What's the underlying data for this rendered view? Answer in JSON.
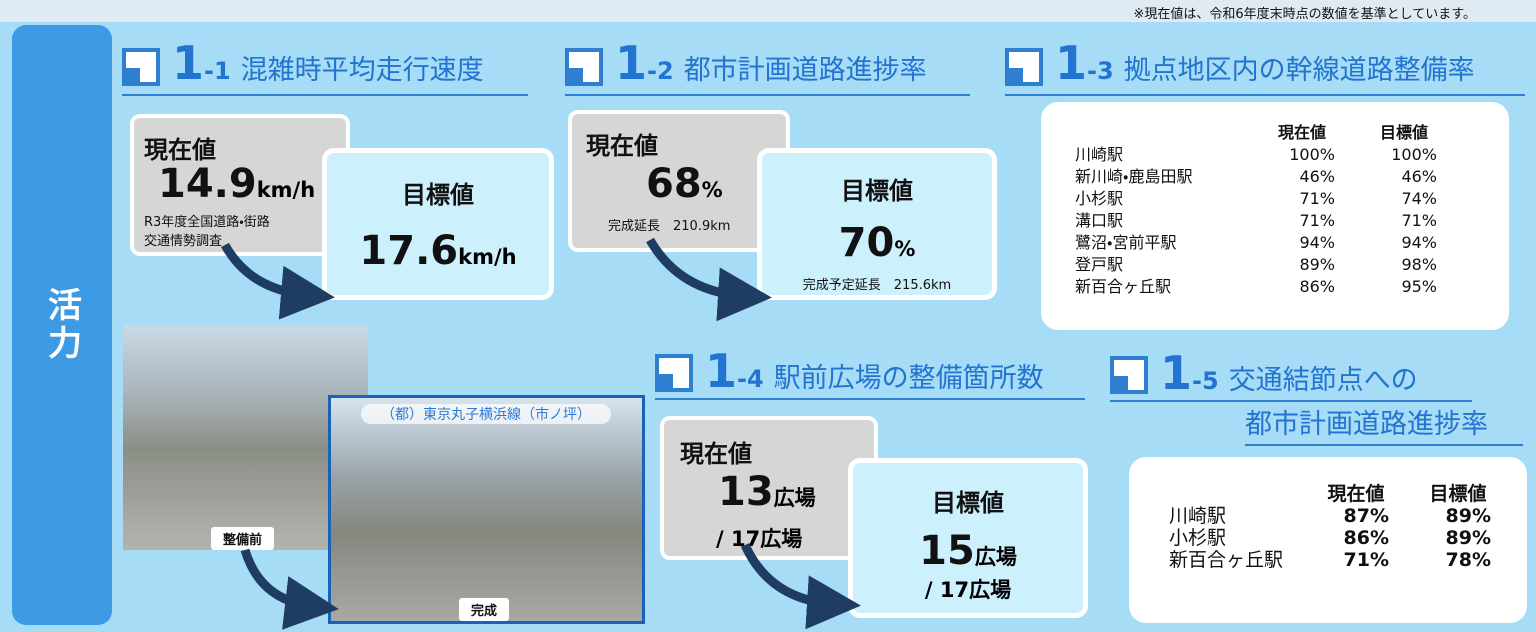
{
  "note": "※現在値は、令和6年度末時点の数値を基準としています。",
  "tab": "活力",
  "s1": {
    "num": "1",
    "sub": "-1",
    "title": "混雑時平均走行速度",
    "current": {
      "label": "現在値",
      "value": "14.9",
      "unit": "km/h",
      "note": [
        "R3年度全国道路・街路",
        "交通情勢調査"
      ]
    },
    "target": {
      "label": "目標値",
      "value": "17.6",
      "unit": "km/h"
    }
  },
  "s2": {
    "num": "1",
    "sub": "-2",
    "title": "都市計画道路進捗率",
    "current": {
      "label": "現在値",
      "value": "68",
      "unit": "%",
      "note": "完成延長　210.9km"
    },
    "target": {
      "label": "目標値",
      "value": "70",
      "unit": "%",
      "note": "完成予定延長　215.6km"
    }
  },
  "s3": {
    "num": "1",
    "sub": "-3",
    "title": "拠点地区内の幹線道路整備率",
    "headers": [
      "現在値",
      "目標値"
    ],
    "rows": [
      [
        "川崎駅",
        "100%",
        "100%"
      ],
      [
        "新川崎・鹿島田駅",
        "46%",
        "46%"
      ],
      [
        "小杉駅",
        "71%",
        "74%"
      ],
      [
        "溝口駅",
        "71%",
        "71%"
      ],
      [
        "鷺沼・宮前平駅",
        "94%",
        "94%"
      ],
      [
        "登戸駅",
        "89%",
        "98%"
      ],
      [
        "新百合ヶ丘駅",
        "86%",
        "95%"
      ]
    ]
  },
  "photos": {
    "caption": "（都）東京丸子横浜線（市ノ坪）",
    "before": "整備前",
    "after": "完成"
  },
  "s4": {
    "num": "1",
    "sub": "-4",
    "title": "駅前広場の整備箇所数",
    "current": {
      "label": "現在値",
      "value": "13",
      "unit": "広場",
      "total": "/ 17広場"
    },
    "target": {
      "label": "目標値",
      "value": "15",
      "unit": "広場",
      "total": "/ 17広場"
    }
  },
  "s5": {
    "num": "1",
    "sub": "-5",
    "title": [
      "交通結節点への",
      "都市計画道路進捗率"
    ],
    "headers": [
      "現在値",
      "目標値"
    ],
    "rows": [
      [
        "川崎駅",
        "87%",
        "89%"
      ],
      [
        "小杉駅",
        "86%",
        "89%"
      ],
      [
        "新百合ヶ丘駅",
        "71%",
        "78%"
      ]
    ]
  }
}
